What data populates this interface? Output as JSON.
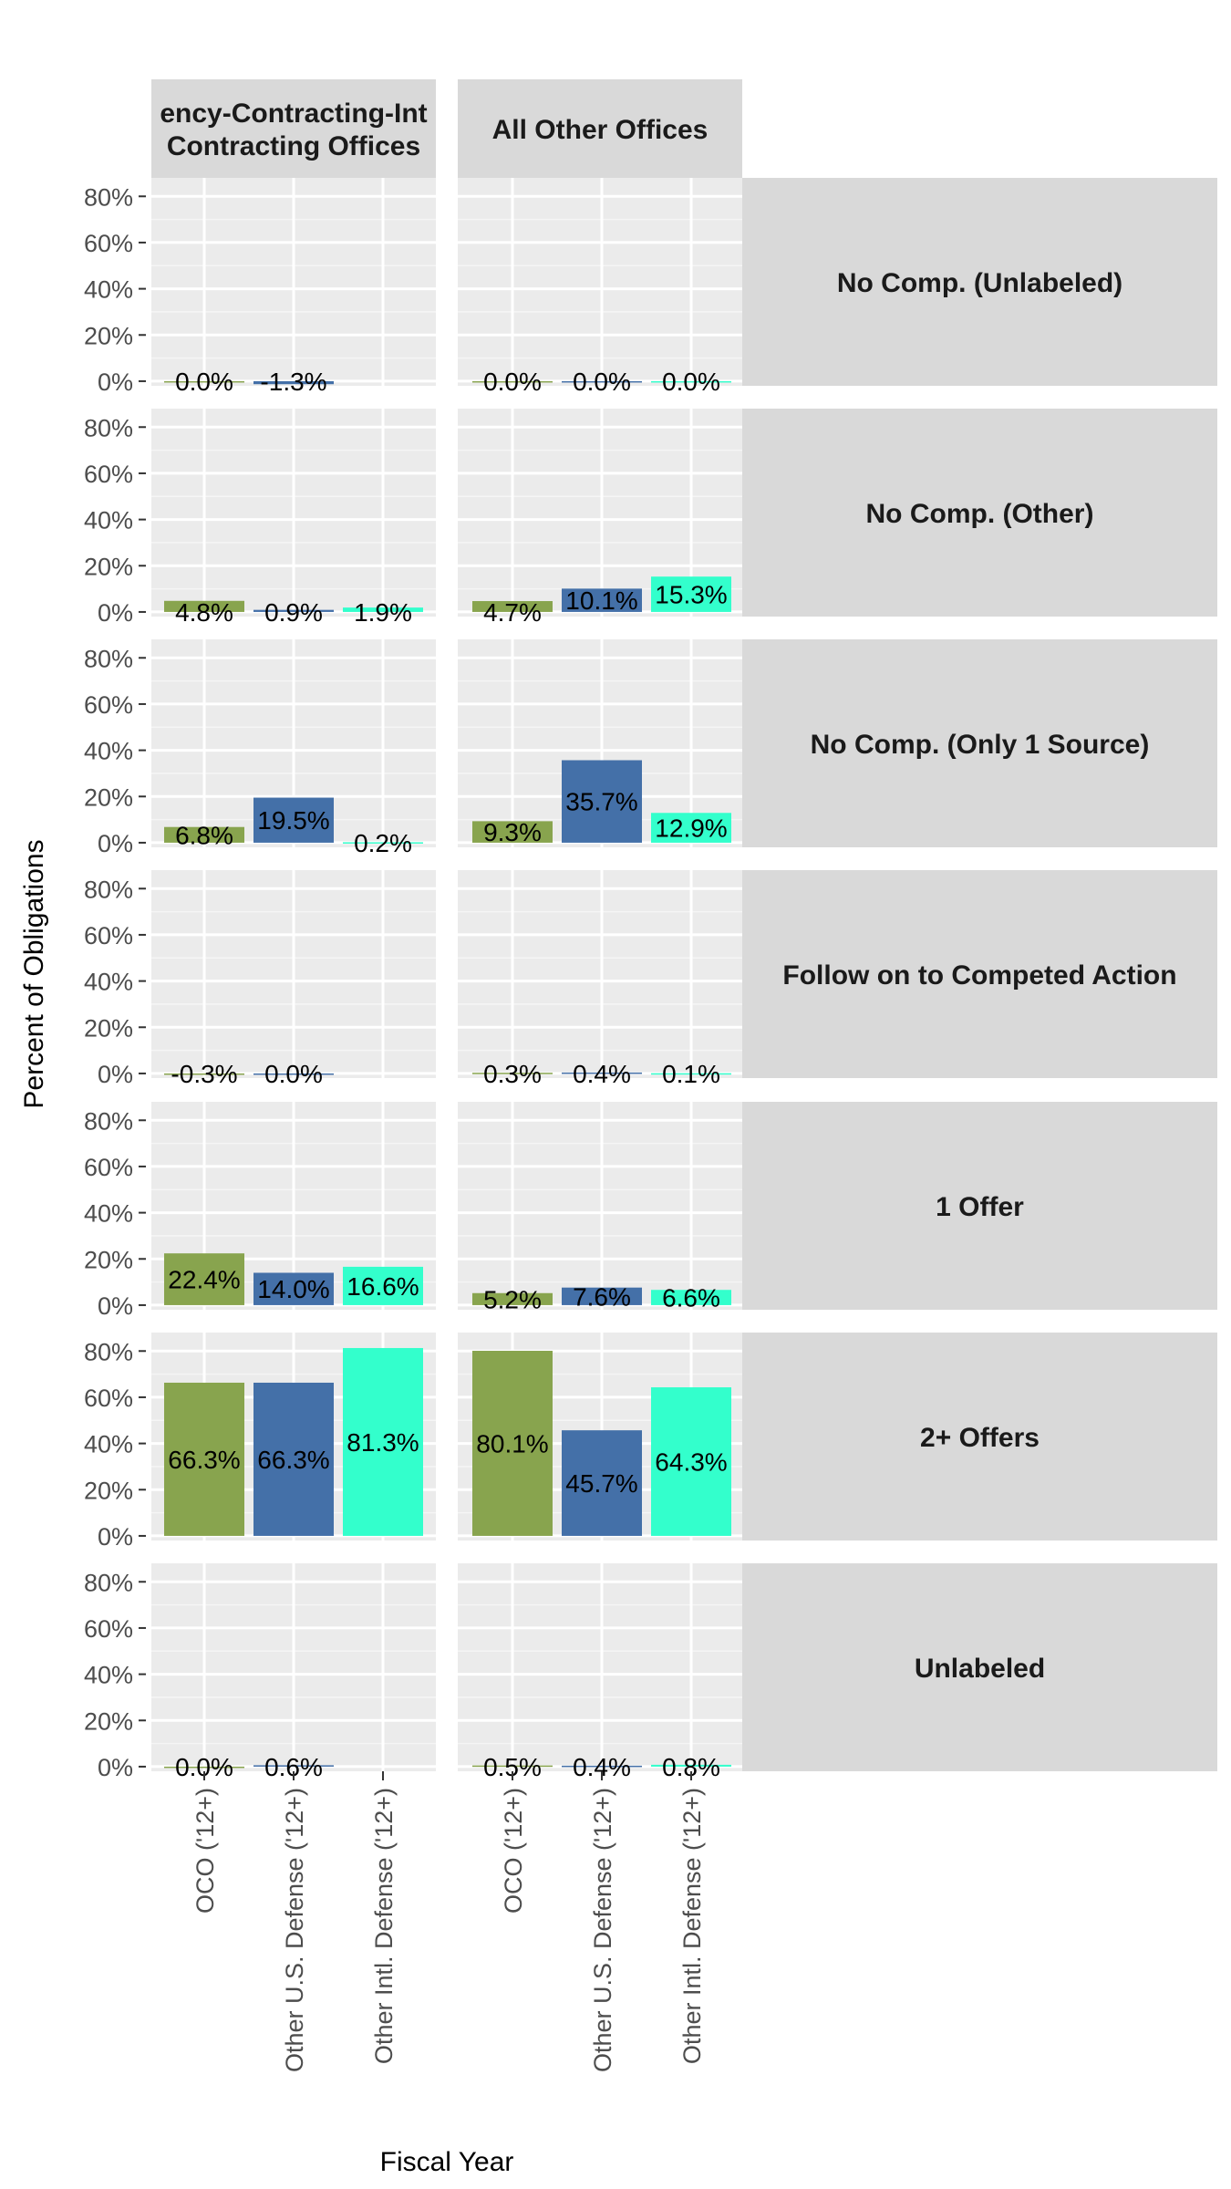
{
  "chart_data": {
    "type": "bar",
    "xlabel": "Fiscal Year",
    "ylabel": "Percent of Obligations",
    "ylim": [
      -0.02,
      0.88
    ],
    "yticks": [
      0,
      0.2,
      0.4,
      0.6,
      0.8
    ],
    "ytick_labels": [
      "0%",
      "20%",
      "40%",
      "60%",
      "80%"
    ],
    "grid": true,
    "categories": [
      "OCO ('12+)",
      "Other U.S. Defense ('12+)",
      "Other Intl. Defense ('12+)"
    ],
    "category_colors": [
      "#88a44e",
      "#4470a8",
      "#33ffcc"
    ],
    "columns": [
      "ency-Contracting-Int\nContracting Offices",
      "All Other Offices"
    ],
    "rows": [
      "No Comp. (Unlabeled)",
      "No Comp. (Other)",
      "No Comp. (Only 1 Source)",
      "Follow on to Competed Action",
      "1 Offer",
      "2+ Offers",
      "Unlabeled"
    ],
    "cells": [
      [
        [
          {
            "value": 0.0,
            "label": "0.0%"
          },
          {
            "value": -0.013,
            "label": "-1.3%"
          },
          null
        ],
        [
          {
            "value": 0.0,
            "label": "0.0%"
          },
          {
            "value": 0.0,
            "label": "0.0%"
          },
          {
            "value": 0.0,
            "label": "0.0%"
          }
        ]
      ],
      [
        [
          {
            "value": 0.048,
            "label": "4.8%"
          },
          {
            "value": 0.009,
            "label": "0.9%"
          },
          {
            "value": 0.019,
            "label": "1.9%"
          }
        ],
        [
          {
            "value": 0.047,
            "label": "4.7%"
          },
          {
            "value": 0.101,
            "label": "10.1%"
          },
          {
            "value": 0.153,
            "label": "15.3%"
          }
        ]
      ],
      [
        [
          {
            "value": 0.068,
            "label": "6.8%"
          },
          {
            "value": 0.195,
            "label": "19.5%"
          },
          {
            "value": 0.002,
            "label": "0.2%"
          }
        ],
        [
          {
            "value": 0.093,
            "label": "9.3%"
          },
          {
            "value": 0.357,
            "label": "35.7%"
          },
          {
            "value": 0.129,
            "label": "12.9%"
          }
        ]
      ],
      [
        [
          {
            "value": -0.003,
            "label": "-0.3%"
          },
          {
            "value": 0.0,
            "label": "0.0%"
          },
          null
        ],
        [
          {
            "value": 0.003,
            "label": "0.3%"
          },
          {
            "value": 0.004,
            "label": "0.4%"
          },
          {
            "value": 0.001,
            "label": "0.1%"
          }
        ]
      ],
      [
        [
          {
            "value": 0.224,
            "label": "22.4%"
          },
          {
            "value": 0.14,
            "label": "14.0%"
          },
          {
            "value": 0.166,
            "label": "16.6%"
          }
        ],
        [
          {
            "value": 0.052,
            "label": "5.2%"
          },
          {
            "value": 0.076,
            "label": "7.6%"
          },
          {
            "value": 0.066,
            "label": "6.6%"
          }
        ]
      ],
      [
        [
          {
            "value": 0.663,
            "label": "66.3%"
          },
          {
            "value": 0.663,
            "label": "66.3%"
          },
          {
            "value": 0.813,
            "label": "81.3%"
          }
        ],
        [
          {
            "value": 0.801,
            "label": "80.1%"
          },
          {
            "value": 0.457,
            "label": "45.7%"
          },
          {
            "value": 0.643,
            "label": "64.3%"
          }
        ]
      ],
      [
        [
          {
            "value": 0.0,
            "label": "0.0%"
          },
          {
            "value": 0.006,
            "label": "0.6%"
          },
          null
        ],
        [
          {
            "value": 0.005,
            "label": "0.5%"
          },
          {
            "value": 0.004,
            "label": "0.4%"
          },
          {
            "value": 0.008,
            "label": "0.8%"
          }
        ]
      ]
    ]
  }
}
